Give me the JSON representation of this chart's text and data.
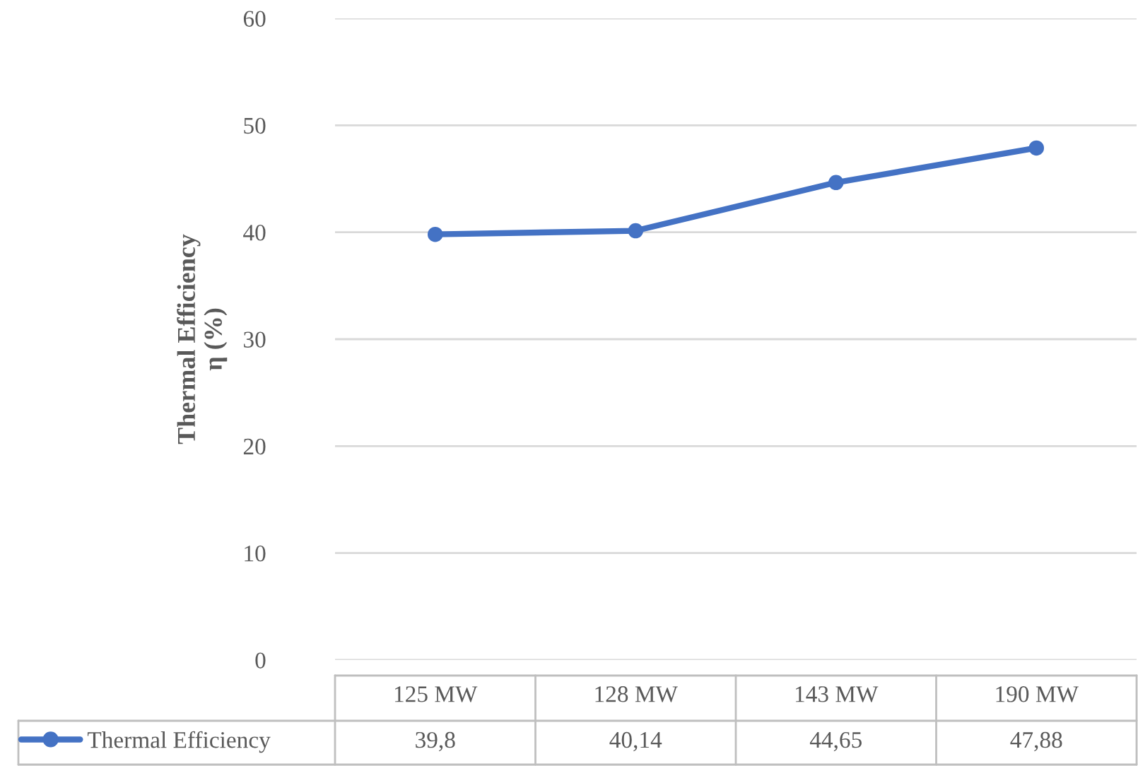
{
  "chart_data": {
    "type": "line",
    "ylabel": "Thermal Efficiency\nη (%)",
    "categories": [
      "125 MW",
      "128 MW",
      "143 MW",
      "190 MW"
    ],
    "series": [
      {
        "name": "Thermal Efficiency",
        "color": "#4472c4",
        "values": [
          39.8,
          40.14,
          44.65,
          47.88
        ],
        "value_labels": [
          "39,8",
          "40,14",
          "44,65",
          "47,88"
        ]
      }
    ],
    "ylim": [
      0,
      60
    ],
    "yticks": [
      0,
      10,
      20,
      30,
      40,
      50,
      60
    ],
    "grid": "y",
    "legend": "bottom",
    "marker": "circle",
    "line_style": "solid"
  }
}
